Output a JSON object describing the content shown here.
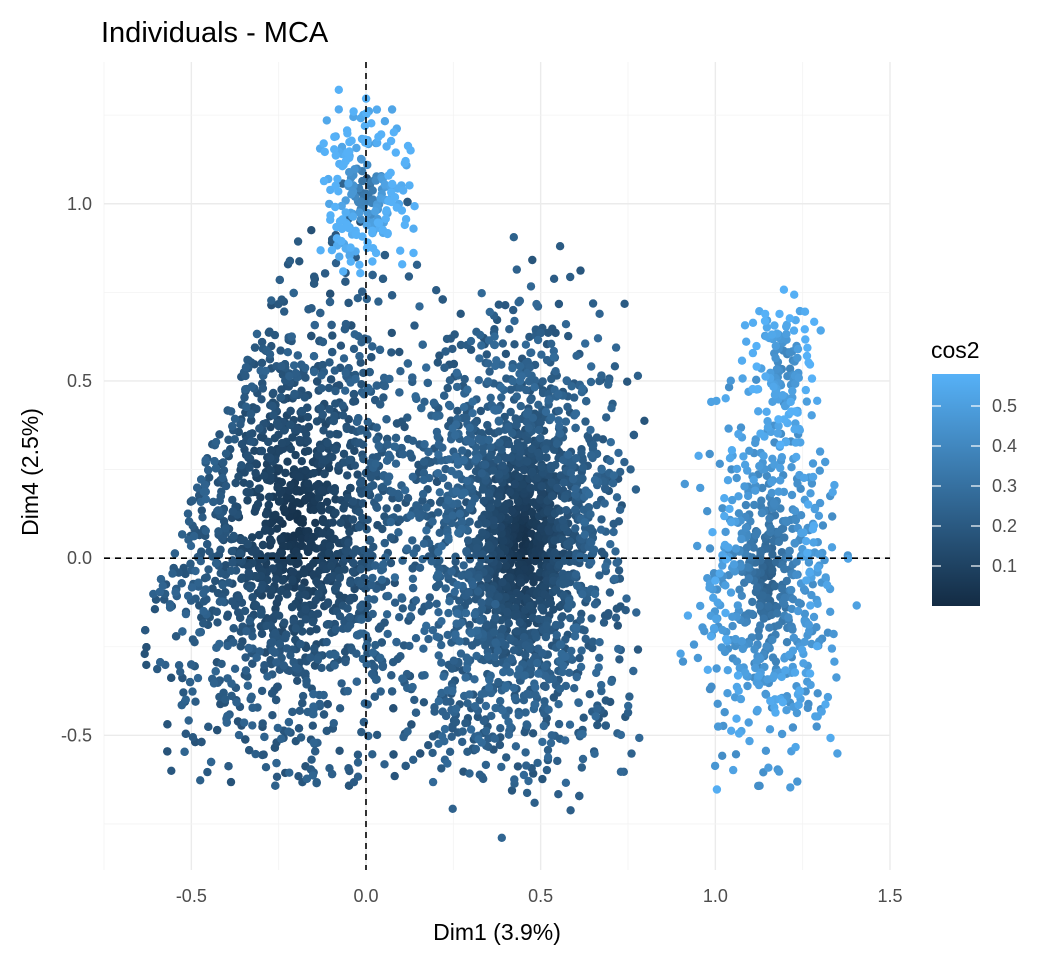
{
  "chart_data": {
    "type": "scatter",
    "title": "Individuals - MCA",
    "xlabel": "Dim1 (3.9%)",
    "ylabel": "Dim4 (2.5%)",
    "xlim": [
      -0.75,
      1.5
    ],
    "ylim": [
      -0.88,
      1.4
    ],
    "x_ticks": [
      -0.5,
      0.0,
      0.5,
      1.0,
      1.5
    ],
    "x_tick_labels": [
      "-0.5",
      "0.0",
      "0.5",
      "1.0",
      "1.5"
    ],
    "y_ticks": [
      -0.5,
      0.0,
      0.5,
      1.0
    ],
    "y_tick_labels": [
      "-0.5",
      "0.0",
      "0.5",
      "1.0"
    ],
    "reference_lines": {
      "x": 0,
      "y": 0,
      "style": "dashed"
    },
    "grid": true,
    "color_variable": "cos2",
    "legend": {
      "title": "cos2",
      "position": "right",
      "type": "gradient",
      "range": [
        0.0,
        0.58
      ],
      "ticks": [
        0.1,
        0.2,
        0.3,
        0.4,
        0.5
      ],
      "tick_labels": [
        "0.1",
        "0.2",
        "0.3",
        "0.4",
        "0.5"
      ],
      "low_color": "#132B43",
      "high_color": "#56B1F7"
    },
    "point_clouds": [
      {
        "name": "left-cluster",
        "x_range": [
          -0.65,
          0.2
        ],
        "y_range": [
          -0.65,
          1.35
        ],
        "cos2_range": [
          0.0,
          0.55
        ]
      },
      {
        "name": "middle-cluster",
        "x_range": [
          0.0,
          0.8
        ],
        "y_range": [
          -0.8,
          0.95
        ],
        "cos2_range": [
          0.0,
          0.5
        ]
      },
      {
        "name": "right-cluster",
        "x_range": [
          0.85,
          1.42
        ],
        "y_range": [
          -0.66,
          0.95
        ],
        "cos2_range": [
          0.05,
          0.55
        ]
      }
    ]
  }
}
